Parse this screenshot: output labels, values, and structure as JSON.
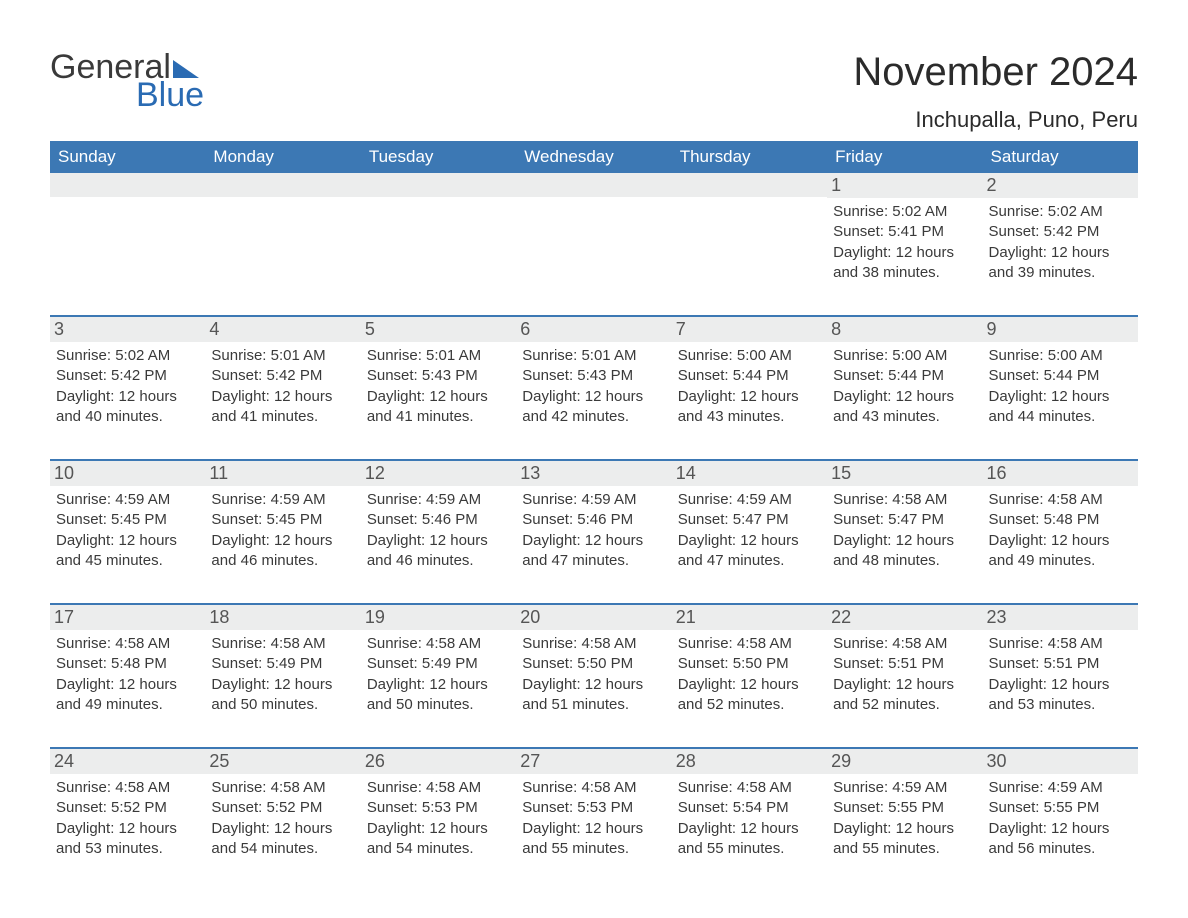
{
  "brand": {
    "name_part1": "General",
    "name_part2": "Blue",
    "text_color": "#3a3a3a",
    "accent_color": "#2a6bb3",
    "triangle_color": "#2a6bb3"
  },
  "title": "November 2024",
  "location": "Inchupalla, Puno, Peru",
  "colors": {
    "header_bg": "#3c78b4",
    "header_text": "#ffffff",
    "week_border": "#3c78b4",
    "daynum_bg": "#eceded",
    "daynum_text": "#555555",
    "body_text": "#3a3a3a",
    "page_bg": "#ffffff"
  },
  "typography": {
    "title_fontsize": 40,
    "location_fontsize": 22,
    "header_fontsize": 17,
    "daynum_fontsize": 18,
    "detail_fontsize": 15,
    "font_family": "Arial, Helvetica, sans-serif"
  },
  "day_names": [
    "Sunday",
    "Monday",
    "Tuesday",
    "Wednesday",
    "Thursday",
    "Friday",
    "Saturday"
  ],
  "weeks": [
    [
      {
        "day": "",
        "sunrise": "",
        "sunset": "",
        "daylight": ""
      },
      {
        "day": "",
        "sunrise": "",
        "sunset": "",
        "daylight": ""
      },
      {
        "day": "",
        "sunrise": "",
        "sunset": "",
        "daylight": ""
      },
      {
        "day": "",
        "sunrise": "",
        "sunset": "",
        "daylight": ""
      },
      {
        "day": "",
        "sunrise": "",
        "sunset": "",
        "daylight": ""
      },
      {
        "day": "1",
        "sunrise": "Sunrise: 5:02 AM",
        "sunset": "Sunset: 5:41 PM",
        "daylight": "Daylight: 12 hours and 38 minutes."
      },
      {
        "day": "2",
        "sunrise": "Sunrise: 5:02 AM",
        "sunset": "Sunset: 5:42 PM",
        "daylight": "Daylight: 12 hours and 39 minutes."
      }
    ],
    [
      {
        "day": "3",
        "sunrise": "Sunrise: 5:02 AM",
        "sunset": "Sunset: 5:42 PM",
        "daylight": "Daylight: 12 hours and 40 minutes."
      },
      {
        "day": "4",
        "sunrise": "Sunrise: 5:01 AM",
        "sunset": "Sunset: 5:42 PM",
        "daylight": "Daylight: 12 hours and 41 minutes."
      },
      {
        "day": "5",
        "sunrise": "Sunrise: 5:01 AM",
        "sunset": "Sunset: 5:43 PM",
        "daylight": "Daylight: 12 hours and 41 minutes."
      },
      {
        "day": "6",
        "sunrise": "Sunrise: 5:01 AM",
        "sunset": "Sunset: 5:43 PM",
        "daylight": "Daylight: 12 hours and 42 minutes."
      },
      {
        "day": "7",
        "sunrise": "Sunrise: 5:00 AM",
        "sunset": "Sunset: 5:44 PM",
        "daylight": "Daylight: 12 hours and 43 minutes."
      },
      {
        "day": "8",
        "sunrise": "Sunrise: 5:00 AM",
        "sunset": "Sunset: 5:44 PM",
        "daylight": "Daylight: 12 hours and 43 minutes."
      },
      {
        "day": "9",
        "sunrise": "Sunrise: 5:00 AM",
        "sunset": "Sunset: 5:44 PM",
        "daylight": "Daylight: 12 hours and 44 minutes."
      }
    ],
    [
      {
        "day": "10",
        "sunrise": "Sunrise: 4:59 AM",
        "sunset": "Sunset: 5:45 PM",
        "daylight": "Daylight: 12 hours and 45 minutes."
      },
      {
        "day": "11",
        "sunrise": "Sunrise: 4:59 AM",
        "sunset": "Sunset: 5:45 PM",
        "daylight": "Daylight: 12 hours and 46 minutes."
      },
      {
        "day": "12",
        "sunrise": "Sunrise: 4:59 AM",
        "sunset": "Sunset: 5:46 PM",
        "daylight": "Daylight: 12 hours and 46 minutes."
      },
      {
        "day": "13",
        "sunrise": "Sunrise: 4:59 AM",
        "sunset": "Sunset: 5:46 PM",
        "daylight": "Daylight: 12 hours and 47 minutes."
      },
      {
        "day": "14",
        "sunrise": "Sunrise: 4:59 AM",
        "sunset": "Sunset: 5:47 PM",
        "daylight": "Daylight: 12 hours and 47 minutes."
      },
      {
        "day": "15",
        "sunrise": "Sunrise: 4:58 AM",
        "sunset": "Sunset: 5:47 PM",
        "daylight": "Daylight: 12 hours and 48 minutes."
      },
      {
        "day": "16",
        "sunrise": "Sunrise: 4:58 AM",
        "sunset": "Sunset: 5:48 PM",
        "daylight": "Daylight: 12 hours and 49 minutes."
      }
    ],
    [
      {
        "day": "17",
        "sunrise": "Sunrise: 4:58 AM",
        "sunset": "Sunset: 5:48 PM",
        "daylight": "Daylight: 12 hours and 49 minutes."
      },
      {
        "day": "18",
        "sunrise": "Sunrise: 4:58 AM",
        "sunset": "Sunset: 5:49 PM",
        "daylight": "Daylight: 12 hours and 50 minutes."
      },
      {
        "day": "19",
        "sunrise": "Sunrise: 4:58 AM",
        "sunset": "Sunset: 5:49 PM",
        "daylight": "Daylight: 12 hours and 50 minutes."
      },
      {
        "day": "20",
        "sunrise": "Sunrise: 4:58 AM",
        "sunset": "Sunset: 5:50 PM",
        "daylight": "Daylight: 12 hours and 51 minutes."
      },
      {
        "day": "21",
        "sunrise": "Sunrise: 4:58 AM",
        "sunset": "Sunset: 5:50 PM",
        "daylight": "Daylight: 12 hours and 52 minutes."
      },
      {
        "day": "22",
        "sunrise": "Sunrise: 4:58 AM",
        "sunset": "Sunset: 5:51 PM",
        "daylight": "Daylight: 12 hours and 52 minutes."
      },
      {
        "day": "23",
        "sunrise": "Sunrise: 4:58 AM",
        "sunset": "Sunset: 5:51 PM",
        "daylight": "Daylight: 12 hours and 53 minutes."
      }
    ],
    [
      {
        "day": "24",
        "sunrise": "Sunrise: 4:58 AM",
        "sunset": "Sunset: 5:52 PM",
        "daylight": "Daylight: 12 hours and 53 minutes."
      },
      {
        "day": "25",
        "sunrise": "Sunrise: 4:58 AM",
        "sunset": "Sunset: 5:52 PM",
        "daylight": "Daylight: 12 hours and 54 minutes."
      },
      {
        "day": "26",
        "sunrise": "Sunrise: 4:58 AM",
        "sunset": "Sunset: 5:53 PM",
        "daylight": "Daylight: 12 hours and 54 minutes."
      },
      {
        "day": "27",
        "sunrise": "Sunrise: 4:58 AM",
        "sunset": "Sunset: 5:53 PM",
        "daylight": "Daylight: 12 hours and 55 minutes."
      },
      {
        "day": "28",
        "sunrise": "Sunrise: 4:58 AM",
        "sunset": "Sunset: 5:54 PM",
        "daylight": "Daylight: 12 hours and 55 minutes."
      },
      {
        "day": "29",
        "sunrise": "Sunrise: 4:59 AM",
        "sunset": "Sunset: 5:55 PM",
        "daylight": "Daylight: 12 hours and 55 minutes."
      },
      {
        "day": "30",
        "sunrise": "Sunrise: 4:59 AM",
        "sunset": "Sunset: 5:55 PM",
        "daylight": "Daylight: 12 hours and 56 minutes."
      }
    ]
  ]
}
